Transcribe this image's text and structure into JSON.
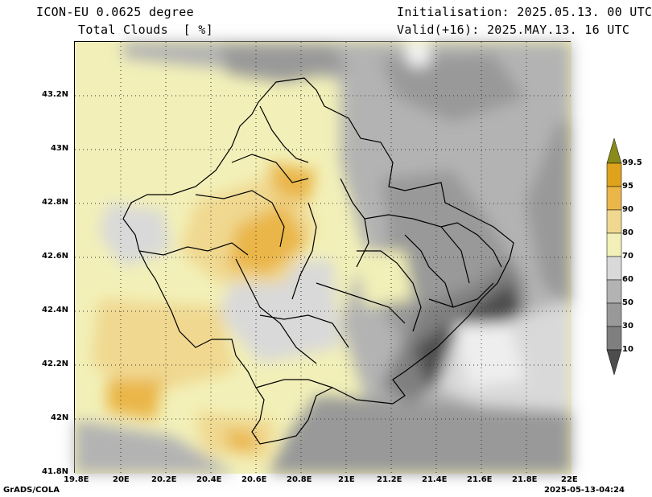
{
  "header": {
    "model": "ICON-EU 0.0625 degree",
    "variable": "Total Clouds  [ %]",
    "init": "Initialisation: 2025.05.13. 00 UTC",
    "valid": "Valid(+16): 2025.MAY.13. 16 UTC"
  },
  "axes": {
    "lon_labels": [
      "19.8E",
      "20E",
      "20.2E",
      "20.4E",
      "20.6E",
      "20.8E",
      "21E",
      "21.2E",
      "21.4E",
      "21.6E",
      "21.8E",
      "22E"
    ],
    "lat_labels": [
      "43.2N",
      "43N",
      "42.8N",
      "42.6N",
      "42.4N",
      "42.2N",
      "42N",
      "41.8N"
    ]
  },
  "colorbar": {
    "levels": [
      "10",
      "30",
      "50",
      "60",
      "70",
      "80",
      "90",
      "95",
      "99.5"
    ],
    "colors": [
      "#4d4d4d",
      "#7f7f7f",
      "#999999",
      "#b3b3b3",
      "#d9d9d9",
      "#f2f0b8",
      "#f0d890",
      "#eab64a",
      "#dfa21c",
      "#8a8a1a"
    ]
  },
  "footer": {
    "left": "GrADS/COLA",
    "right": "2025-05-13-04:24"
  }
}
